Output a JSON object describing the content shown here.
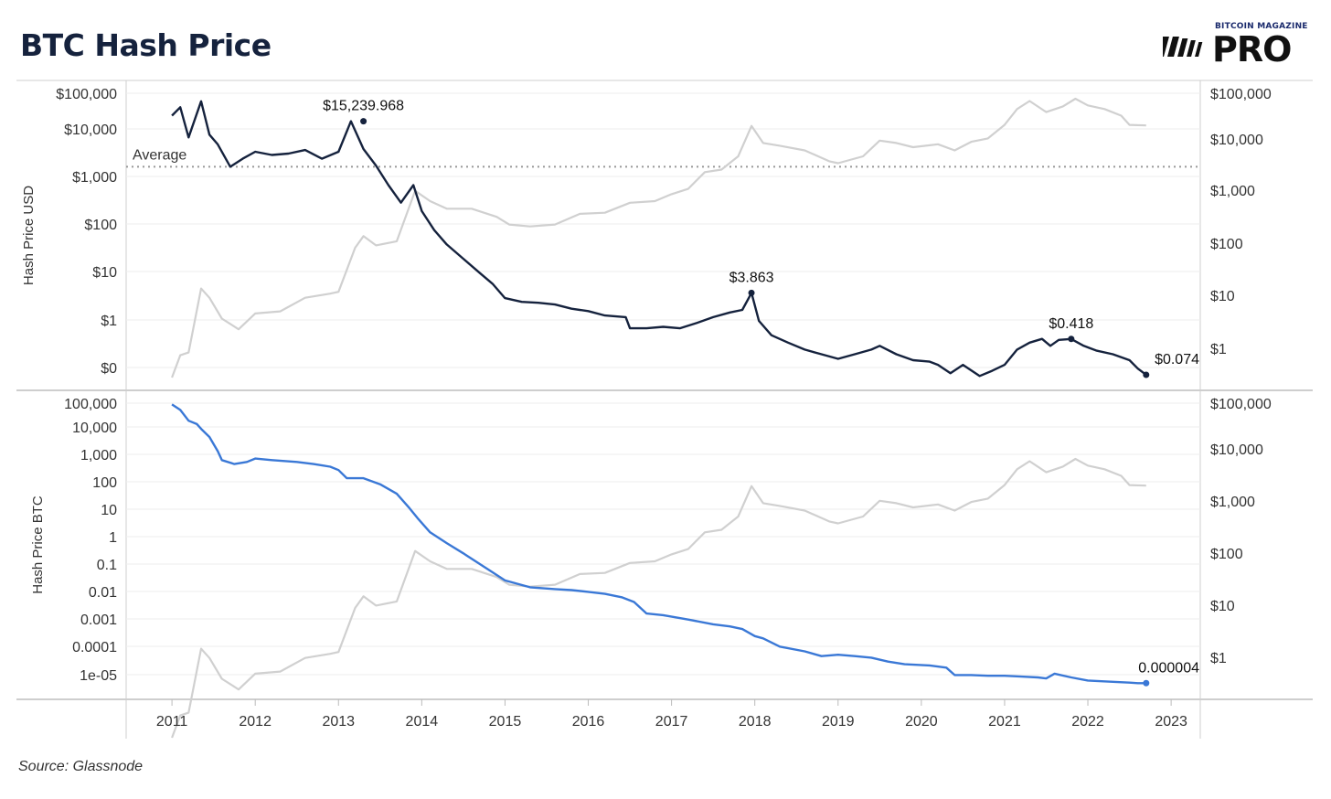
{
  "header": {
    "title": "BTC Hash Price"
  },
  "logo": {
    "small_text": "BITCOIN MAGAZINE",
    "big_text": "PRO"
  },
  "footer": {
    "source": "Source: Glassnode"
  },
  "colors": {
    "usd_line": "#15223d",
    "btc_line": "#3a78d6",
    "price_line": "#d0d0d0",
    "grid": "#eeeeee",
    "average_line": "#999999"
  },
  "chart_data": [
    {
      "type": "line",
      "title": "",
      "ylabel": "Hash Price USD",
      "y_scale": "log",
      "left_ticks": [
        "$100,000",
        "$10,000",
        "$1,000",
        "$100",
        "$10",
        "$1",
        "$0"
      ],
      "right_ticks": [
        "$100,000",
        "$10,000",
        "$1,000",
        "$100",
        "$10",
        "$1"
      ],
      "average": {
        "label": "Average",
        "value": 1700
      },
      "series": [
        {
          "role": "hash_price_usd",
          "x": [
            2011.0,
            2011.1,
            2011.2,
            2011.35,
            2011.45,
            2011.55,
            2011.7,
            2011.85,
            2012.0,
            2012.2,
            2012.4,
            2012.6,
            2012.8,
            2013.0,
            2013.15,
            2013.3,
            2013.45,
            2013.6,
            2013.75,
            2013.9,
            2014.0,
            2014.15,
            2014.3,
            2014.5,
            2014.7,
            2014.85,
            2015.0,
            2015.2,
            2015.4,
            2015.6,
            2015.8,
            2016.0,
            2016.2,
            2016.45,
            2016.5,
            2016.7,
            2016.9,
            2017.1,
            2017.3,
            2017.5,
            2017.7,
            2017.85,
            2017.96,
            2018.05,
            2018.2,
            2018.4,
            2018.6,
            2018.8,
            2019.0,
            2019.2,
            2019.4,
            2019.5,
            2019.7,
            2019.9,
            2020.1,
            2020.2,
            2020.35,
            2020.5,
            2020.7,
            2020.85,
            2021.0,
            2021.15,
            2021.3,
            2021.45,
            2021.55,
            2021.65,
            2021.8,
            2021.95,
            2022.1,
            2022.3,
            2022.5,
            2022.6,
            2022.7
          ],
          "values": [
            20000,
            30000,
            7000,
            40000,
            8000,
            5000,
            1700,
            2500,
            3500,
            3000,
            3200,
            3800,
            2500,
            3500,
            15239.968,
            4000,
            1800,
            700,
            300,
            700,
            200,
            80,
            40,
            20,
            10,
            6,
            3,
            2.5,
            2.4,
            2.2,
            1.8,
            1.6,
            1.3,
            1.2,
            0.7,
            0.7,
            0.75,
            0.7,
            0.9,
            1.2,
            1.5,
            1.7,
            3.863,
            1.0,
            0.5,
            0.35,
            0.25,
            0.2,
            0.16,
            0.2,
            0.25,
            0.3,
            0.2,
            0.15,
            0.14,
            0.12,
            0.08,
            0.12,
            0.07,
            0.09,
            0.12,
            0.25,
            0.35,
            0.42,
            0.3,
            0.4,
            0.418,
            0.3,
            0.24,
            0.2,
            0.15,
            0.1,
            0.074
          ]
        },
        {
          "role": "btc_price",
          "axis": "right",
          "x": [
            2011.0,
            2011.1,
            2011.2,
            2011.35,
            2011.45,
            2011.6,
            2011.8,
            2012.0,
            2012.3,
            2012.6,
            2012.9,
            2013.0,
            2013.2,
            2013.3,
            2013.45,
            2013.7,
            2013.92,
            2014.1,
            2014.3,
            2014.6,
            2014.9,
            2015.05,
            2015.3,
            2015.6,
            2015.9,
            2016.2,
            2016.5,
            2016.8,
            2017.0,
            2017.2,
            2017.4,
            2017.6,
            2017.8,
            2017.96,
            2018.1,
            2018.3,
            2018.6,
            2018.9,
            2019.0,
            2019.3,
            2019.5,
            2019.7,
            2019.9,
            2020.2,
            2020.4,
            2020.6,
            2020.8,
            2021.0,
            2021.15,
            2021.3,
            2021.5,
            2021.7,
            2021.85,
            2022.0,
            2022.2,
            2022.4,
            2022.5,
            2022.7
          ],
          "values": [
            0.3,
            0.8,
            0.9,
            15,
            10,
            4,
            2.5,
            5,
            5.5,
            10,
            12,
            13,
            90,
            150,
            100,
            120,
            1100,
            700,
            500,
            500,
            350,
            250,
            230,
            250,
            400,
            420,
            650,
            700,
            950,
            1200,
            2500,
            2800,
            5000,
            19000,
            9000,
            8000,
            6500,
            4000,
            3700,
            5000,
            10000,
            9000,
            7500,
            8500,
            6500,
            9500,
            11000,
            20000,
            40000,
            57000,
            35000,
            45000,
            63000,
            47000,
            40000,
            30000,
            20000,
            19500
          ]
        }
      ],
      "annotations": [
        {
          "label": "$15,239.968",
          "x": 2013.3,
          "value": 15239.968
        },
        {
          "label": "$3.863",
          "x": 2017.96,
          "value": 3.863
        },
        {
          "label": "$0.418",
          "x": 2021.8,
          "value": 0.418
        },
        {
          "label": "$0.074",
          "x": 2022.7,
          "value": 0.074
        }
      ]
    },
    {
      "type": "line",
      "title": "",
      "ylabel": "Hash Price BTC",
      "y_scale": "log",
      "left_ticks": [
        "100,000",
        "10,000",
        "1,000",
        "100",
        "10",
        "1",
        "0.1",
        "0.01",
        "0.001",
        "0.0001",
        "1e-05"
      ],
      "right_ticks": [
        "$100,000",
        "$10,000",
        "$1,000",
        "$100",
        "$10",
        "$1"
      ],
      "xlabels": [
        "2011",
        "2012",
        "2013",
        "2014",
        "2015",
        "2016",
        "2017",
        "2018",
        "2019",
        "2020",
        "2021",
        "2022",
        "2023"
      ],
      "series": [
        {
          "role": "hash_price_btc",
          "x": [
            2011.0,
            2011.1,
            2011.2,
            2011.3,
            2011.35,
            2011.45,
            2011.55,
            2011.6,
            2011.75,
            2011.9,
            2012.0,
            2012.2,
            2012.5,
            2012.7,
            2012.9,
            2013.0,
            2013.1,
            2013.3,
            2013.5,
            2013.7,
            2013.85,
            2013.95,
            2014.1,
            2014.3,
            2014.5,
            2014.7,
            2014.85,
            2015.0,
            2015.3,
            2015.6,
            2015.8,
            2016.0,
            2016.2,
            2016.4,
            2016.55,
            2016.7,
            2016.9,
            2017.2,
            2017.5,
            2017.7,
            2017.85,
            2018.0,
            2018.1,
            2018.3,
            2018.6,
            2018.8,
            2019.0,
            2019.2,
            2019.4,
            2019.6,
            2019.8,
            2020.1,
            2020.3,
            2020.4,
            2020.6,
            2020.8,
            2021.0,
            2021.2,
            2021.4,
            2021.5,
            2021.6,
            2021.8,
            2022.0,
            2022.3,
            2022.5,
            2022.6,
            2022.7
          ],
          "values": [
            80000,
            50000,
            20000,
            15000,
            10000,
            5000,
            1500,
            700,
            500,
            600,
            800,
            700,
            600,
            500,
            400,
            300,
            150,
            150,
            90,
            40,
            12,
            5,
            1.5,
            0.6,
            0.25,
            0.1,
            0.05,
            0.025,
            0.014,
            0.012,
            0.011,
            0.0095,
            0.008,
            0.006,
            0.004,
            0.0015,
            0.0013,
            0.0009,
            0.0006,
            0.0005,
            0.0004,
            0.00022,
            0.00018,
            9e-05,
            6e-05,
            4e-05,
            4.5e-05,
            4e-05,
            3.5e-05,
            2.5e-05,
            2e-05,
            1.8e-05,
            1.5e-05,
            8e-06,
            8e-06,
            7.5e-06,
            7.5e-06,
            7e-06,
            6.5e-06,
            6e-06,
            9e-06,
            6.5e-06,
            5e-06,
            4.5e-06,
            4.2e-06,
            4e-06,
            4e-06
          ]
        }
      ],
      "annotations": [
        {
          "label": "0.000004",
          "x": 2022.7,
          "value": 4e-06
        }
      ]
    }
  ]
}
